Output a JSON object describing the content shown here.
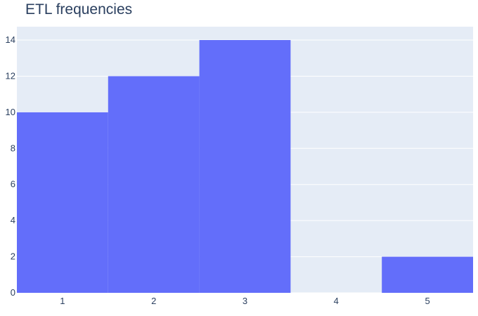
{
  "chart_data": {
    "type": "bar",
    "title": "ETL frequencies",
    "xlabel": "",
    "ylabel": "",
    "categories": [
      "1",
      "2",
      "3",
      "4",
      "5"
    ],
    "values": [
      10,
      12,
      14,
      0,
      2
    ],
    "ylim": [
      0,
      14.74
    ],
    "yticks": [
      "0",
      "2",
      "4",
      "6",
      "8",
      "10",
      "12",
      "14"
    ],
    "grid": true,
    "legend": "none",
    "colors": {
      "bar": "#636efa",
      "plot_background": "#e5ecf6",
      "grid": "#ffffff",
      "text": "#2a3f5f"
    }
  }
}
